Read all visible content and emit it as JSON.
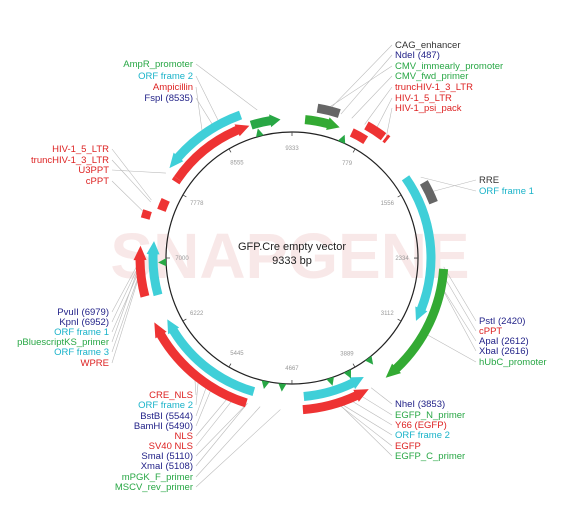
{
  "map": {
    "name": "GFP.Cre empty vector",
    "length_label": "9333 bp",
    "total_bp": 9333,
    "watermark": "SNAPGENE"
  },
  "colors": {
    "red": "#ee3333",
    "cyan": "#3fcfd8",
    "green": "#33aa33",
    "gray": "#666666",
    "dark_green": "#28a745",
    "navy": "#222288",
    "teal": "#1ab3c9",
    "crimson": "#dd2222",
    "leader": "#bbbbbb"
  },
  "ticks": [
    {
      "label": "9333",
      "bp": 0
    },
    {
      "label": "779",
      "bp": 779
    },
    {
      "label": "1556",
      "bp": 1556
    },
    {
      "label": "2334",
      "bp": 2334
    },
    {
      "label": "3112",
      "bp": 3112
    },
    {
      "label": "3889",
      "bp": 3889
    },
    {
      "label": "4667",
      "bp": 4667
    },
    {
      "label": "5445",
      "bp": 5445
    },
    {
      "label": "6222",
      "bp": 6222
    },
    {
      "label": "7000",
      "bp": 7000
    },
    {
      "label": "7778",
      "bp": 7778
    },
    {
      "label": "8555",
      "bp": 8555
    }
  ],
  "features": [
    {
      "name": "AmpR",
      "start": 7900,
      "end": 8870,
      "track": 1,
      "color": "red",
      "dir": 1
    },
    {
      "name": "AmpR_promoter",
      "start": 8890,
      "end": 9210,
      "track": 1,
      "color": "dark_green",
      "dir": 1
    },
    {
      "name": "ORF frame 2",
      "start": 7940,
      "end": 8820,
      "track": 2,
      "color": "cyan",
      "dir": -1
    },
    {
      "name": "CMV_immearly_promoter",
      "start": 140,
      "end": 520,
      "track": 1,
      "color": "green",
      "dir": 1
    },
    {
      "name": "CAG_enhancer",
      "start": 250,
      "end": 470,
      "track": 2,
      "color": "gray",
      "dir": 0
    },
    {
      "name": "truncHIV-1_3_LTR",
      "start": 660,
      "end": 830,
      "track": 1,
      "color": "red",
      "dir": 0
    },
    {
      "name": "HIV-1_5_LTR",
      "start": 760,
      "end": 960,
      "track": 2,
      "color": "red",
      "dir": 0
    },
    {
      "name": "HIV-1_psi_pack",
      "start": 980,
      "end": 1010,
      "track": 2,
      "color": "red",
      "dir": 0
    },
    {
      "name": "ORF frame 1",
      "start": 1420,
      "end": 3030,
      "track": 1,
      "color": "cyan",
      "dir": 1
    },
    {
      "name": "RRE",
      "start": 1560,
      "end": 1780,
      "track": 2,
      "color": "gray",
      "dir": 0
    },
    {
      "name": "hUbC_promoter",
      "start": 2440,
      "end": 3680,
      "track": 2,
      "color": "green",
      "dir": 1
    },
    {
      "name": "ORF frame 2 (EGFP)",
      "start": 3860,
      "end": 4540,
      "track": 1,
      "color": "cyan",
      "dir": -1
    },
    {
      "name": "EGFP",
      "start": 3880,
      "end": 4560,
      "track": 2,
      "color": "red",
      "dir": -1
    },
    {
      "name": "ORF frame 2 (Cre)",
      "start": 5080,
      "end": 6320,
      "track": 1,
      "color": "cyan",
      "dir": 1
    },
    {
      "name": "CRE_NLS",
      "start": 5120,
      "end": 6350,
      "track": 2,
      "color": "red",
      "dir": 1
    },
    {
      "name": "ORF frame 3",
      "start": 6600,
      "end": 7180,
      "track": 1,
      "color": "cyan",
      "dir": 1
    },
    {
      "name": "WPRE",
      "start": 6620,
      "end": 7120,
      "track": 2,
      "color": "red",
      "dir": 1
    },
    {
      "name": "cPPT",
      "start": 7390,
      "end": 7470,
      "track": 2,
      "color": "red",
      "dir": 0
    },
    {
      "name": "HIV-1_5_LTR (b)",
      "start": 7520,
      "end": 7640,
      "track": 1,
      "color": "red",
      "dir": 0
    },
    {
      "name": "U3PPT",
      "start": 7860,
      "end": 7900,
      "track": 1,
      "color": "red",
      "dir": 0
    }
  ],
  "markers": [
    {
      "bp": 3700,
      "color": "dark_green"
    },
    {
      "bp": 3990,
      "color": "dark_green"
    },
    {
      "bp": 4210,
      "color": "dark_green"
    },
    {
      "bp": 4780,
      "color": "dark_green"
    },
    {
      "bp": 4980,
      "color": "dark_green"
    },
    {
      "bp": 6950,
      "color": "dark_green"
    },
    {
      "bp": 8950,
      "color": "dark_green"
    },
    {
      "bp": 600,
      "color": "dark_green"
    }
  ],
  "label_groups": [
    {
      "id": "top-left",
      "anchor": "end",
      "x": 193,
      "labels": [
        {
          "text": "AmpR_promoter",
          "color": "dark_green",
          "bp": 8990,
          "y": 67
        },
        {
          "text": "ORF frame 2",
          "color": "teal",
          "bp": 8600,
          "y": 79
        },
        {
          "text": "Ampicillin",
          "color": "crimson",
          "bp": 8400,
          "y": 90
        },
        {
          "text": "FspI  (8535)",
          "color": "navy",
          "bp": 8535,
          "y": 101
        }
      ]
    },
    {
      "id": "top-right",
      "anchor": "start",
      "x": 395,
      "labels": [
        {
          "text": "CAG_enhancer",
          "color": "#333333",
          "bp": 360,
          "y": 48
        },
        {
          "text": "NdeI  (487)",
          "color": "navy",
          "bp": 487,
          "y": 58
        },
        {
          "text": "CMV_immearly_promoter",
          "color": "dark_green",
          "bp": 330,
          "y": 69
        },
        {
          "text": "CMV_fwd_primer",
          "color": "dark_green",
          "bp": 600,
          "y": 79
        },
        {
          "text": "truncHIV-1_3_LTR",
          "color": "crimson",
          "bp": 740,
          "y": 90
        },
        {
          "text": "HIV-1_5_LTR",
          "color": "crimson",
          "bp": 860,
          "y": 101
        },
        {
          "text": "HIV-1_psi_pack",
          "color": "crimson",
          "bp": 990,
          "y": 111
        }
      ]
    },
    {
      "id": "left-upper",
      "anchor": "end",
      "x": 109,
      "labels": [
        {
          "text": "HIV-1_5_LTR",
          "color": "crimson",
          "bp": 7580,
          "y": 152
        },
        {
          "text": "truncHIV-1_3_LTR",
          "color": "crimson",
          "bp": 7560,
          "y": 163
        },
        {
          "text": "U3PPT",
          "color": "crimson",
          "bp": 7880,
          "y": 173
        },
        {
          "text": "cPPT",
          "color": "crimson",
          "bp": 7430,
          "y": 184
        }
      ]
    },
    {
      "id": "right-upper",
      "anchor": "start",
      "x": 479,
      "labels": [
        {
          "text": "RRE",
          "color": "#333333",
          "bp": 1670,
          "y": 183
        },
        {
          "text": "ORF frame 1",
          "color": "teal",
          "bp": 1500,
          "y": 194
        }
      ]
    },
    {
      "id": "left-lower",
      "anchor": "end",
      "x": 109,
      "labels": [
        {
          "text": "PvuII  (6979)",
          "color": "navy",
          "bp": 6979,
          "y": 315
        },
        {
          "text": "KpnI  (6952)",
          "color": "navy",
          "bp": 6952,
          "y": 325
        },
        {
          "text": "ORF frame 1",
          "color": "teal",
          "bp": 6900,
          "y": 335
        },
        {
          "text": "pBluescriptKS_primer",
          "color": "dark_green",
          "bp": 6950,
          "y": 345
        },
        {
          "text": "ORF frame 3",
          "color": "teal",
          "bp": 6880,
          "y": 355
        },
        {
          "text": "WPRE",
          "color": "crimson",
          "bp": 6870,
          "y": 366
        }
      ]
    },
    {
      "id": "right-lower",
      "anchor": "start",
      "x": 479,
      "labels": [
        {
          "text": "PstI  (2420)",
          "color": "navy",
          "bp": 2420,
          "y": 324
        },
        {
          "text": "cPPT",
          "color": "crimson",
          "bp": 2500,
          "y": 334
        },
        {
          "text": "ApaI  (2612)",
          "color": "navy",
          "bp": 2612,
          "y": 344
        },
        {
          "text": "XbaI  (2616)",
          "color": "navy",
          "bp": 2616,
          "y": 354
        },
        {
          "text": "hUbC_promoter",
          "color": "dark_green",
          "bp": 3100,
          "y": 365
        }
      ]
    },
    {
      "id": "bottom-left",
      "anchor": "end",
      "x": 193,
      "labels": [
        {
          "text": "CRE_NLS",
          "color": "crimson",
          "bp": 5700,
          "y": 398
        },
        {
          "text": "ORF frame 2",
          "color": "teal",
          "bp": 5650,
          "y": 408
        },
        {
          "text": "BstBI  (5544)",
          "color": "navy",
          "bp": 5544,
          "y": 419
        },
        {
          "text": "BamHI  (5490)",
          "color": "navy",
          "bp": 5490,
          "y": 429
        },
        {
          "text": "NLS",
          "color": "crimson",
          "bp": 5300,
          "y": 439
        },
        {
          "text": "SV40 NLS",
          "color": "crimson",
          "bp": 5250,
          "y": 449
        },
        {
          "text": "SmaI  (5110)",
          "color": "navy",
          "bp": 5110,
          "y": 459
        },
        {
          "text": "XmaI  (5108)",
          "color": "navy",
          "bp": 5108,
          "y": 469
        },
        {
          "text": "mPGK_F_primer",
          "color": "dark_green",
          "bp": 4980,
          "y": 480
        },
        {
          "text": "MSCV_rev_primer",
          "color": "dark_green",
          "bp": 4780,
          "y": 490
        }
      ]
    },
    {
      "id": "bottom-right",
      "anchor": "start",
      "x": 395,
      "labels": [
        {
          "text": "NheI  (3853)",
          "color": "navy",
          "bp": 3853,
          "y": 407
        },
        {
          "text": "EGFP_N_primer",
          "color": "dark_green",
          "bp": 3990,
          "y": 418
        },
        {
          "text": "Y66 (EGFP)",
          "color": "crimson",
          "bp": 4100,
          "y": 428
        },
        {
          "text": "ORF frame 2",
          "color": "teal",
          "bp": 4200,
          "y": 438
        },
        {
          "text": "EGFP",
          "color": "crimson",
          "bp": 4220,
          "y": 449
        },
        {
          "text": "EGFP_C_primer",
          "color": "dark_green",
          "bp": 4210,
          "y": 459
        }
      ]
    }
  ]
}
